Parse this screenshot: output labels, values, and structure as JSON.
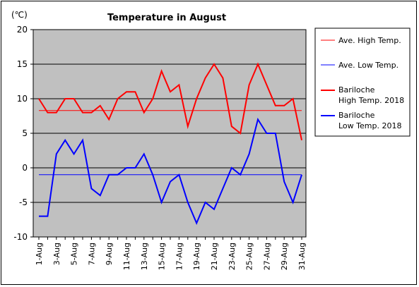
{
  "chart_data": {
    "type": "line",
    "title": "Temperature in August",
    "ylabel": "(℃)",
    "xlabel": "",
    "ylim": [
      -10,
      20
    ],
    "yticks": [
      "20",
      "15",
      "10",
      "5",
      "0",
      "-5",
      "-10"
    ],
    "xtick_labels": [
      "1-Aug",
      "3-Aug",
      "5-Aug",
      "7-Aug",
      "9-Aug",
      "11-Aug",
      "13-Aug",
      "15-Aug",
      "17-Aug",
      "19-Aug",
      "21-Aug",
      "23-Aug",
      "25-Aug",
      "27-Aug",
      "29-Aug",
      "31-Aug"
    ],
    "x": [
      1,
      2,
      3,
      4,
      5,
      6,
      7,
      8,
      9,
      10,
      11,
      12,
      13,
      14,
      15,
      16,
      17,
      18,
      19,
      20,
      21,
      22,
      23,
      24,
      25,
      26,
      27,
      28,
      29,
      30,
      31
    ],
    "grid": true,
    "legend_position": "right",
    "plot_background": "#c0c0c0",
    "series": [
      {
        "name": "Ave. High Temp.",
        "color": "#ff0000",
        "style": "thin",
        "values": [
          8.3,
          8.3,
          8.3,
          8.3,
          8.3,
          8.3,
          8.3,
          8.3,
          8.3,
          8.3,
          8.3,
          8.3,
          8.3,
          8.3,
          8.3,
          8.3,
          8.3,
          8.3,
          8.3,
          8.3,
          8.3,
          8.3,
          8.3,
          8.3,
          8.3,
          8.3,
          8.3,
          8.3,
          8.3,
          8.3,
          8.3
        ]
      },
      {
        "name": "Ave. Low Temp.",
        "color": "#0000ff",
        "style": "thin",
        "values": [
          -1,
          -1,
          -1,
          -1,
          -1,
          -1,
          -1,
          -1,
          -1,
          -1,
          -1,
          -1,
          -1,
          -1,
          -1,
          -1,
          -1,
          -1,
          -1,
          -1,
          -1,
          -1,
          -1,
          -1,
          -1,
          -1,
          -1,
          -1,
          -1,
          -1,
          -1
        ]
      },
      {
        "name": "Bariloche High Temp. 2018",
        "legend_lines": [
          "Bariloche",
          "High Temp. 2018"
        ],
        "color": "#ff0000",
        "style": "thick",
        "values": [
          10,
          8,
          8,
          10,
          10,
          8,
          8,
          9,
          7,
          10,
          11,
          11,
          8,
          10,
          14,
          11,
          12,
          6,
          10,
          13,
          15,
          13,
          6,
          5,
          12,
          15,
          12,
          9,
          9,
          10,
          4
        ]
      },
      {
        "name": "Bariloche Low Temp. 2018",
        "legend_lines": [
          "Bariloche",
          "Low Temp. 2018"
        ],
        "color": "#0000ff",
        "style": "thick",
        "values": [
          -7,
          -7,
          2,
          4,
          2,
          4,
          -3,
          -4,
          -1,
          -1,
          0,
          0,
          2,
          -1,
          -5,
          -2,
          -1,
          -5,
          -8,
          -5,
          -6,
          -3,
          0,
          -1,
          2,
          7,
          5,
          5,
          -2,
          -5,
          -1
        ]
      }
    ]
  }
}
